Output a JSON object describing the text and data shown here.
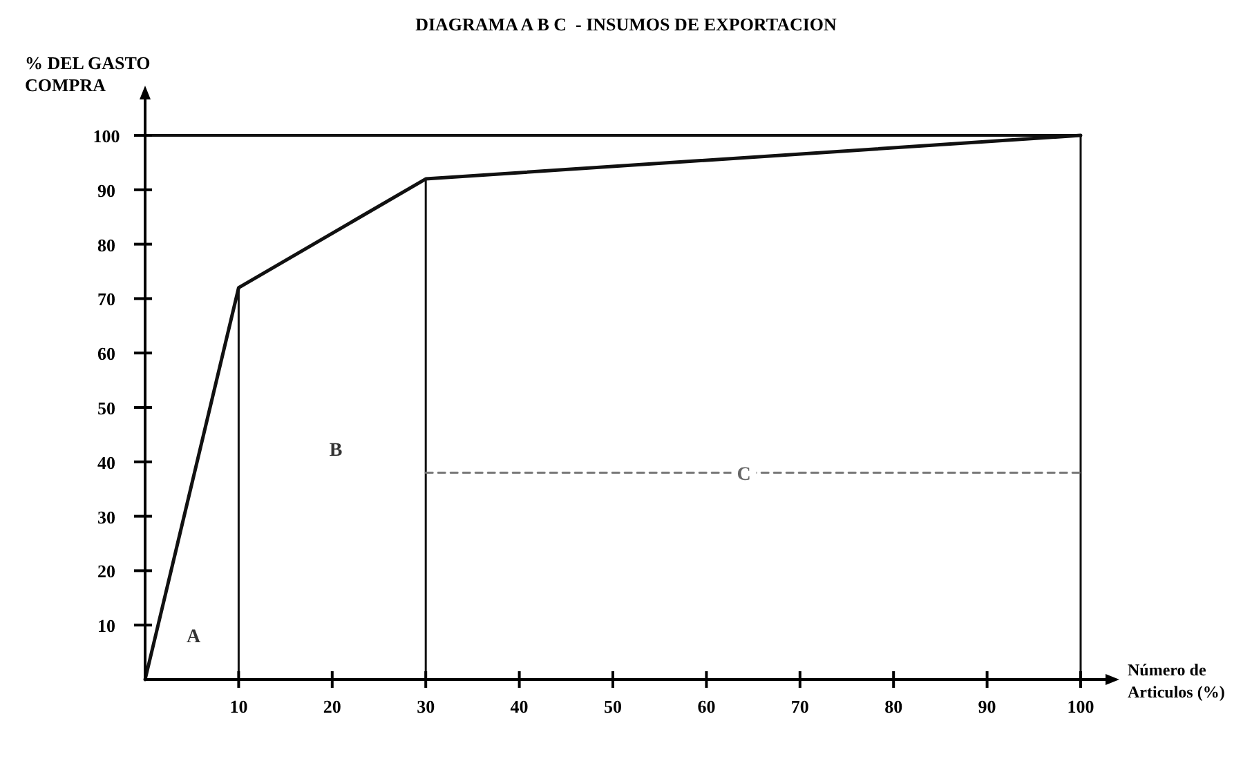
{
  "chart_data": {
    "type": "line",
    "title": "DIAGRAMA A B C  - INSUMOS DE EXPORTACION",
    "xlabel": "Número de\nArticulos (%)",
    "ylabel": "% DEL GASTO\nCOMPRA",
    "xlim": [
      0,
      100
    ],
    "ylim": [
      0,
      100
    ],
    "xticks": [
      10,
      20,
      30,
      40,
      50,
      60,
      70,
      80,
      90,
      100
    ],
    "yticks": [
      10,
      20,
      30,
      40,
      50,
      60,
      70,
      80,
      90,
      100
    ],
    "grid": false,
    "series": [
      {
        "x": [
          0,
          10,
          30,
          100
        ],
        "values": [
          0,
          72,
          92,
          100
        ],
        "color": "#111111",
        "line_style": "solid"
      },
      {
        "x": [
          10,
          10
        ],
        "values": [
          0,
          72
        ],
        "color": "#111111",
        "line_style": "solid"
      },
      {
        "x": [
          30,
          30
        ],
        "values": [
          0,
          92
        ],
        "color": "#111111",
        "line_style": "solid"
      },
      {
        "x": [
          100,
          100
        ],
        "values": [
          0,
          100
        ],
        "color": "#111111",
        "line_style": "solid"
      },
      {
        "x": [
          30,
          100
        ],
        "values": [
          38,
          38
        ],
        "color": "#777777",
        "line_style": "dashed"
      }
    ],
    "ref_lines": [
      {
        "axis": "y",
        "value": 100,
        "color": "#111111"
      }
    ],
    "annotations": [
      "A",
      "B",
      {
        "text": "C",
        "x": 64,
        "y": 38
      }
    ]
  }
}
